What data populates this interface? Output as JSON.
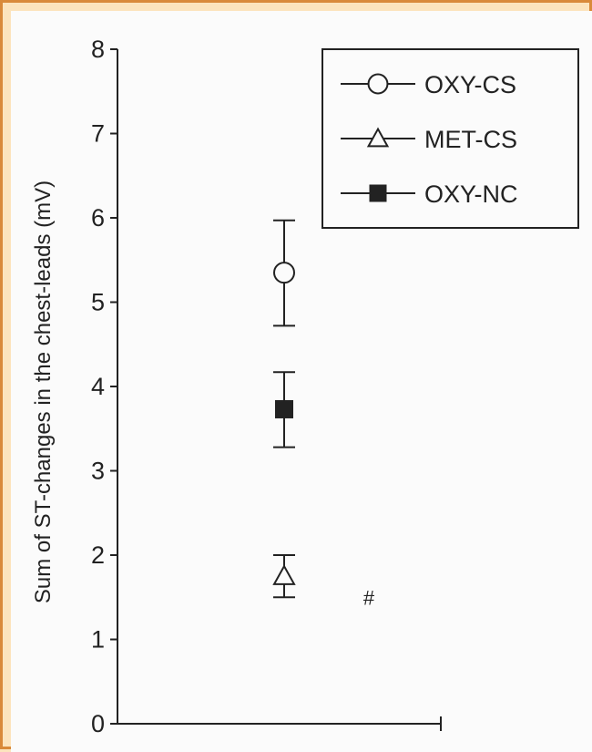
{
  "chart_data": {
    "type": "scatter",
    "title": "",
    "xlabel": "",
    "ylabel": "Sum of ST-changes in the chest-leads (mV)",
    "ylim": [
      0,
      8
    ],
    "yticks": [
      "0",
      "1",
      "2",
      "3",
      "4",
      "5",
      "6",
      "7",
      "8"
    ],
    "grid": false,
    "legend_position": "top-right",
    "series": [
      {
        "name": "OXY-CS",
        "marker": "open-circle",
        "mean": 5.35,
        "error_low": 4.72,
        "error_high": 5.97
      },
      {
        "name": "MET-CS",
        "marker": "open-triangle",
        "mean": 1.75,
        "error_low": 1.5,
        "error_high": 2.0
      },
      {
        "name": "OXY-NC",
        "marker": "filled-square",
        "mean": 3.73,
        "error_low": 3.28,
        "error_high": 4.17
      }
    ],
    "annotations": [
      {
        "text": "#",
        "y": 1.5
      }
    ]
  },
  "colors": {
    "frame": "#d98a3a",
    "background": "#fce4bd",
    "plot_background": "#fbfbfb",
    "ink": "#222222"
  }
}
